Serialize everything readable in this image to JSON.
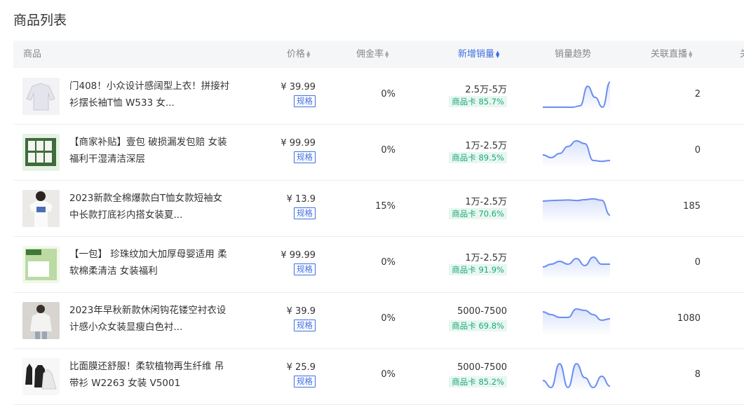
{
  "page_title": "商品列表",
  "columns": {
    "product": "商品",
    "price": "价格",
    "commission": "佣金率",
    "new_sales": "新增销量",
    "trend": "销量趋势",
    "live": "关联直播",
    "overflow": "关"
  },
  "spec_label": "规格",
  "rows": [
    {
      "name": "门408！小众设计感阔型上衣！拼接衬衫摆长袖T恤 W533 女...",
      "price": "¥ 39.99",
      "commission": "0%",
      "sales": "2.5万-5万",
      "card": "商品卡 85.7%",
      "live": "2",
      "thumb": "white-shirt",
      "trend": [
        0.95,
        0.95,
        0.95,
        0.95,
        0.95,
        0.9,
        0.2,
        0.6,
        0.95,
        0.05
      ]
    },
    {
      "name": "【商家补贴】壹包 破损漏发包赔 女装福利干湿清洁深层",
      "price": "¥ 99.99",
      "commission": "0%",
      "sales": "1万-2.5万",
      "card": "商品卡 89.5%",
      "live": "0",
      "thumb": "wipes-pack",
      "trend": [
        0.65,
        0.75,
        0.6,
        0.35,
        0.15,
        0.25,
        0.85,
        0.88,
        0.85
      ]
    },
    {
      "name": "2023新款全棉爆款白T恤女款短袖女中长款打底衫内搭女装夏...",
      "price": "¥ 13.9",
      "commission": "15%",
      "sales": "1万-2.5万",
      "card": "商品卡 70.6%",
      "live": "185",
      "thumb": "white-tee",
      "trend": [
        0.3,
        0.28,
        0.27,
        0.26,
        0.28,
        0.25,
        0.22,
        0.27,
        0.8
      ]
    },
    {
      "name": "【一包】 珍珠纹加大加厚母婴适用 柔软棉柔清洁 女装福利",
      "price": "¥ 99.99",
      "commission": "0%",
      "sales": "1万-2.5万",
      "card": "商品卡 91.9%",
      "live": "0",
      "thumb": "cotton-pack",
      "trend": [
        0.65,
        0.55,
        0.45,
        0.55,
        0.35,
        0.6,
        0.3,
        0.55,
        0.55
      ]
    },
    {
      "name": "2023年早秋新款休闲钩花镂空衬衣设计感小众女装显瘦白色衬...",
      "price": "¥ 39.9",
      "commission": "0%",
      "sales": "5000-7500",
      "card": "商品卡 69.8%",
      "live": "1080",
      "thumb": "lace-shirt",
      "trend": [
        0.25,
        0.35,
        0.45,
        0.45,
        0.15,
        0.2,
        0.35,
        0.55,
        0.5
      ]
    },
    {
      "name": "比面膜还舒服！柔软植物再生纤维 吊带衫 W2263 女装 V5001",
      "price": "¥ 25.9",
      "commission": "0%",
      "sales": "5000-7500",
      "card": "商品卡 85.2%",
      "live": "8",
      "thumb": "camisoles",
      "trend": [
        0.7,
        0.95,
        0.1,
        0.95,
        0.1,
        0.6,
        0.95,
        0.55,
        0.9
      ]
    }
  ],
  "colors": {
    "accent": "#3e6fe3",
    "badge": "#1aa97b",
    "trend_line": "#6b8ef0"
  }
}
